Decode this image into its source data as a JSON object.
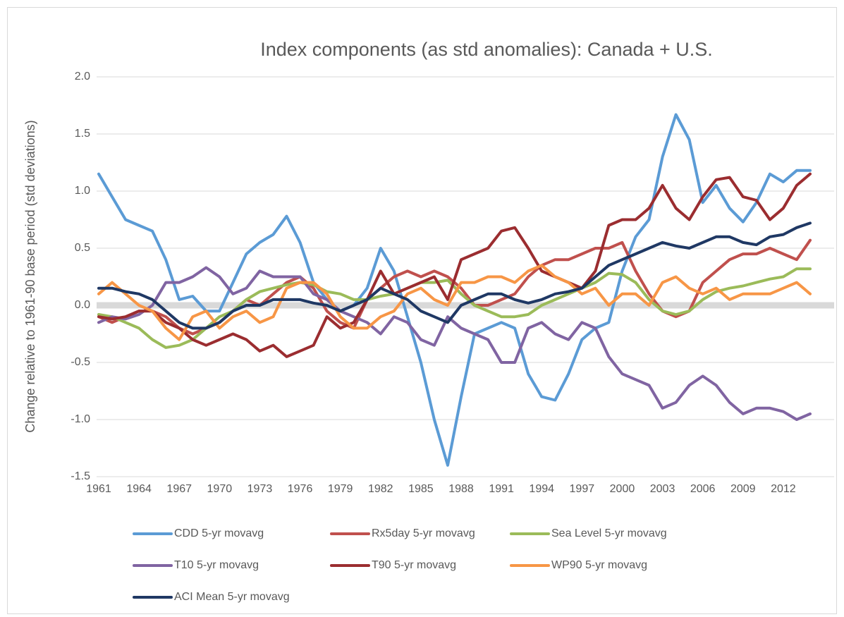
{
  "chart_data": {
    "type": "line",
    "title": "Index components (as std anomalies): Canada + U.S.",
    "y_label": "Change relative to 1961-90 base period (std deviations)",
    "x": [
      1961,
      1962,
      1963,
      1964,
      1965,
      1966,
      1967,
      1968,
      1969,
      1970,
      1971,
      1972,
      1973,
      1974,
      1975,
      1976,
      1977,
      1978,
      1979,
      1980,
      1981,
      1982,
      1983,
      1984,
      1985,
      1986,
      1987,
      1988,
      1989,
      1990,
      1991,
      1992,
      1993,
      1994,
      1995,
      1996,
      1997,
      1998,
      1999,
      2000,
      2001,
      2002,
      2003,
      2004,
      2005,
      2006,
      2007,
      2008,
      2009,
      2010,
      2011,
      2012,
      2013,
      2014
    ],
    "xlim": [
      1961,
      2015
    ],
    "xticks": [
      1961,
      1964,
      1967,
      1970,
      1973,
      1976,
      1979,
      1982,
      1985,
      1988,
      1991,
      1994,
      1997,
      2000,
      2003,
      2006,
      2009,
      2012
    ],
    "ylim": [
      -1.5,
      2
    ],
    "yticks": [
      {
        "value": -1.5,
        "label": "-1.5"
      },
      {
        "value": -1,
        "label": "-1.0"
      },
      -0.5,
      {
        "value": 0,
        "label": "0.0"
      },
      0.5,
      {
        "value": 1,
        "label": "1.0"
      },
      1.5,
      {
        "value": 2,
        "label": "2.0"
      }
    ],
    "grid": true,
    "legend": "bottom",
    "series": [
      {
        "name": "CDD 5-yr movavg",
        "color": "#5b9bd5",
        "values": [
          1.15,
          0.95,
          0.75,
          0.7,
          0.65,
          0.4,
          0.05,
          0.08,
          -0.05,
          -0.05,
          0.2,
          0.45,
          0.55,
          0.62,
          0.78,
          0.55,
          0.2,
          0.05,
          -0.05,
          0.0,
          0.15,
          0.5,
          0.3,
          -0.1,
          -0.5,
          -1.0,
          -1.4,
          -0.8,
          -0.25,
          -0.2,
          -0.15,
          -0.2,
          -0.6,
          -0.8,
          -0.83,
          -0.6,
          -0.3,
          -0.2,
          -0.15,
          0.3,
          0.6,
          0.75,
          1.3,
          1.67,
          1.45,
          0.9,
          1.05,
          0.85,
          0.73,
          0.9,
          1.15,
          1.08,
          1.18,
          1.18
        ]
      },
      {
        "name": "Rx5day 5-yr movavg",
        "color": "#c0504d",
        "values": [
          -0.1,
          -0.15,
          -0.1,
          -0.05,
          -0.05,
          -0.1,
          -0.2,
          -0.25,
          -0.2,
          -0.15,
          -0.05,
          0.05,
          0.0,
          0.1,
          0.2,
          0.25,
          0.15,
          -0.05,
          -0.15,
          -0.2,
          0.05,
          0.15,
          0.25,
          0.3,
          0.25,
          0.3,
          0.25,
          0.15,
          0.0,
          0.0,
          0.05,
          0.1,
          0.25,
          0.35,
          0.4,
          0.4,
          0.45,
          0.5,
          0.5,
          0.55,
          0.3,
          0.1,
          -0.05,
          -0.1,
          -0.05,
          0.2,
          0.3,
          0.4,
          0.45,
          0.45,
          0.5,
          0.45,
          0.4,
          0.57
        ]
      },
      {
        "name": "Sea Level 5-yr movavg",
        "color": "#9bbb59",
        "values": [
          -0.08,
          -0.1,
          -0.15,
          -0.2,
          -0.3,
          -0.37,
          -0.35,
          -0.3,
          -0.2,
          -0.1,
          -0.05,
          0.05,
          0.12,
          0.15,
          0.18,
          0.2,
          0.18,
          0.12,
          0.1,
          0.05,
          0.05,
          0.08,
          0.1,
          0.15,
          0.2,
          0.2,
          0.22,
          0.1,
          0.0,
          -0.05,
          -0.1,
          -0.1,
          -0.08,
          0.0,
          0.05,
          0.1,
          0.15,
          0.2,
          0.28,
          0.27,
          0.2,
          0.05,
          -0.05,
          -0.08,
          -0.05,
          0.05,
          0.12,
          0.15,
          0.17,
          0.2,
          0.23,
          0.25,
          0.32,
          0.32
        ]
      },
      {
        "name": "T10 5-yr movavg",
        "color": "#8064a2",
        "values": [
          -0.15,
          -0.1,
          -0.12,
          -0.08,
          0.0,
          0.2,
          0.2,
          0.25,
          0.33,
          0.25,
          0.1,
          0.15,
          0.3,
          0.25,
          0.25,
          0.25,
          0.1,
          0.05,
          -0.05,
          -0.1,
          -0.15,
          -0.25,
          -0.1,
          -0.15,
          -0.3,
          -0.35,
          -0.1,
          -0.2,
          -0.25,
          -0.3,
          -0.5,
          -0.5,
          -0.2,
          -0.15,
          -0.25,
          -0.3,
          -0.15,
          -0.2,
          -0.45,
          -0.6,
          -0.65,
          -0.7,
          -0.9,
          -0.85,
          -0.7,
          -0.62,
          -0.7,
          -0.85,
          -0.95,
          -0.9,
          -0.9,
          -0.93,
          -1.0,
          -0.95
        ]
      },
      {
        "name": "T90 5-yr movavg",
        "color": "#9b2d30",
        "values": [
          -0.1,
          -0.12,
          -0.1,
          -0.05,
          -0.05,
          -0.15,
          -0.2,
          -0.3,
          -0.35,
          -0.3,
          -0.25,
          -0.3,
          -0.4,
          -0.35,
          -0.45,
          -0.4,
          -0.35,
          -0.1,
          -0.2,
          -0.15,
          0.05,
          0.3,
          0.1,
          0.15,
          0.2,
          0.25,
          0.05,
          0.4,
          0.45,
          0.5,
          0.65,
          0.68,
          0.5,
          0.3,
          0.25,
          0.2,
          0.15,
          0.3,
          0.7,
          0.75,
          0.75,
          0.85,
          1.05,
          0.85,
          0.75,
          0.95,
          1.1,
          1.12,
          0.95,
          0.92,
          0.75,
          0.85,
          1.05,
          1.15
        ]
      },
      {
        "name": "WP90 5-yr movavg",
        "color": "#f79646",
        "values": [
          0.1,
          0.2,
          0.1,
          0.0,
          -0.05,
          -0.2,
          -0.3,
          -0.1,
          -0.05,
          -0.2,
          -0.1,
          -0.05,
          -0.15,
          -0.1,
          0.15,
          0.2,
          0.2,
          0.1,
          -0.1,
          -0.2,
          -0.2,
          -0.1,
          -0.05,
          0.1,
          0.15,
          0.05,
          0.0,
          0.2,
          0.2,
          0.25,
          0.25,
          0.2,
          0.3,
          0.35,
          0.25,
          0.2,
          0.1,
          0.15,
          0.0,
          0.1,
          0.1,
          0.0,
          0.2,
          0.25,
          0.15,
          0.1,
          0.15,
          0.05,
          0.1,
          0.1,
          0.1,
          0.15,
          0.2,
          0.1
        ]
      },
      {
        "name": "ACI Mean 5-yr movavg",
        "color": "#1f3864",
        "values": [
          0.15,
          0.15,
          0.12,
          0.1,
          0.05,
          -0.05,
          -0.15,
          -0.2,
          -0.2,
          -0.15,
          -0.05,
          0.0,
          0.0,
          0.05,
          0.05,
          0.05,
          0.02,
          0.0,
          -0.05,
          0.0,
          0.05,
          0.15,
          0.1,
          0.05,
          -0.05,
          -0.1,
          -0.15,
          0.0,
          0.05,
          0.1,
          0.1,
          0.05,
          0.02,
          0.05,
          0.1,
          0.12,
          0.15,
          0.25,
          0.35,
          0.4,
          0.45,
          0.5,
          0.55,
          0.52,
          0.5,
          0.55,
          0.6,
          0.6,
          0.55,
          0.53,
          0.6,
          0.62,
          0.68,
          0.72
        ]
      }
    ]
  }
}
